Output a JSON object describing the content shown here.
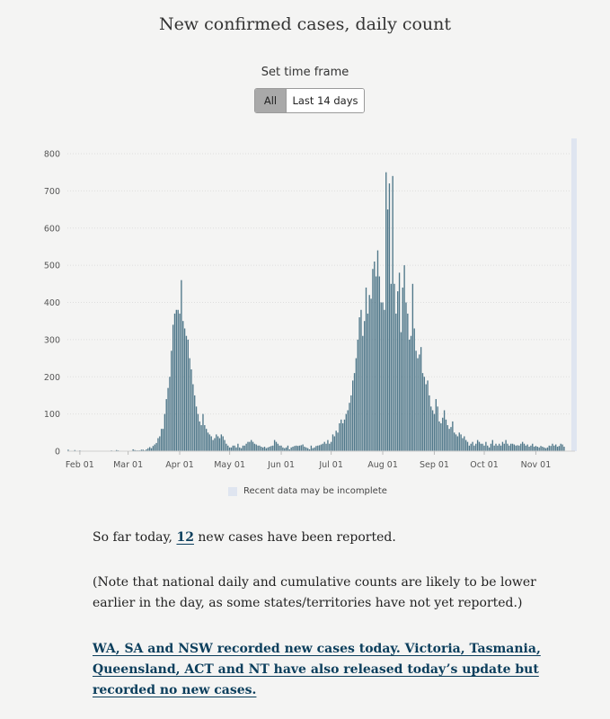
{
  "page": {
    "title": "New confirmed cases, daily count"
  },
  "controls": {
    "label": "Set time frame",
    "options": [
      "All",
      "Last 14 days"
    ],
    "selected": "All"
  },
  "chart_data": {
    "type": "bar",
    "title": "New confirmed cases, daily count",
    "x_axis": {
      "type": "date",
      "range": [
        "2020-01-25",
        "2020-11-24"
      ],
      "tick_labels": [
        "Feb 01",
        "Mar 01",
        "Apr 01",
        "May 01",
        "Jun 01",
        "Jul 01",
        "Aug 01",
        "Sep 01",
        "Oct 01",
        "Nov 01"
      ]
    },
    "y_axis": {
      "min": 0,
      "max": 800,
      "ticks": [
        0,
        100,
        200,
        300,
        400,
        500,
        600,
        700,
        800
      ]
    },
    "grid": true,
    "bar_color": "#4f7789",
    "highlight_color": "#dfe5f0",
    "x_start": "2020-01-25",
    "x_end": "2020-11-24",
    "values": [
      4,
      0,
      0,
      1,
      3,
      1,
      0,
      2,
      0,
      0,
      0,
      0,
      0,
      1,
      0,
      0,
      0,
      0,
      0,
      0,
      0,
      0,
      1,
      0,
      0,
      0,
      2,
      0,
      0,
      3,
      2,
      0,
      1,
      0,
      0,
      0,
      0,
      0,
      0,
      5,
      3,
      2,
      2,
      2,
      4,
      4,
      2,
      5,
      8,
      11,
      8,
      14,
      18,
      22,
      35,
      40,
      60,
      60,
      100,
      140,
      170,
      200,
      270,
      340,
      370,
      380,
      380,
      370,
      460,
      350,
      330,
      310,
      300,
      250,
      220,
      180,
      150,
      120,
      100,
      80,
      70,
      100,
      70,
      60,
      50,
      45,
      40,
      30,
      35,
      45,
      40,
      35,
      45,
      40,
      30,
      20,
      15,
      10,
      10,
      15,
      15,
      10,
      20,
      10,
      8,
      15,
      15,
      20,
      25,
      25,
      30,
      25,
      20,
      18,
      15,
      15,
      12,
      10,
      12,
      8,
      10,
      12,
      14,
      15,
      30,
      25,
      20,
      15,
      15,
      10,
      8,
      10,
      15,
      5,
      10,
      12,
      14,
      15,
      14,
      15,
      16,
      18,
      12,
      10,
      8,
      5,
      15,
      8,
      10,
      14,
      15,
      16,
      18,
      20,
      25,
      20,
      30,
      20,
      25,
      45,
      40,
      55,
      50,
      75,
      85,
      75,
      85,
      100,
      110,
      130,
      150,
      190,
      210,
      250,
      300,
      360,
      380,
      310,
      350,
      440,
      370,
      420,
      410,
      490,
      510,
      470,
      540,
      470,
      400,
      400,
      380,
      750,
      650,
      720,
      450,
      740,
      450,
      370,
      430,
      480,
      320,
      440,
      500,
      400,
      370,
      300,
      310,
      450,
      330,
      270,
      250,
      260,
      280,
      210,
      200,
      180,
      190,
      150,
      120,
      110,
      100,
      140,
      120,
      80,
      75,
      90,
      110,
      85,
      70,
      60,
      65,
      80,
      50,
      45,
      40,
      50,
      45,
      35,
      40,
      30,
      25,
      15,
      20,
      25,
      15,
      20,
      30,
      25,
      20,
      20,
      15,
      25,
      15,
      10,
      20,
      30,
      15,
      20,
      15,
      20,
      15,
      25,
      20,
      30,
      20,
      15,
      20,
      20,
      18,
      15,
      16,
      15,
      20,
      25,
      20,
      15,
      18,
      12,
      15,
      20,
      12,
      14,
      12,
      10,
      14,
      12,
      10,
      8,
      10,
      15,
      14,
      20,
      15,
      18,
      12,
      14,
      20,
      18,
      12
    ]
  },
  "legend": {
    "label": "Recent data may be incomplete",
    "color": "#dfe5f0"
  },
  "summary": {
    "prefix": "So far today, ",
    "count": "12",
    "suffix": " new cases have been reported."
  },
  "note": "(Note that national daily and cumulative counts are likely to be lower earlier in the day, as some states/territories have not yet reported.)",
  "states_link": "WA, SA and NSW recorded new cases today. Victoria, Tasmania, Queensland, ACT and NT have also released today’s update but recorded no new cases."
}
